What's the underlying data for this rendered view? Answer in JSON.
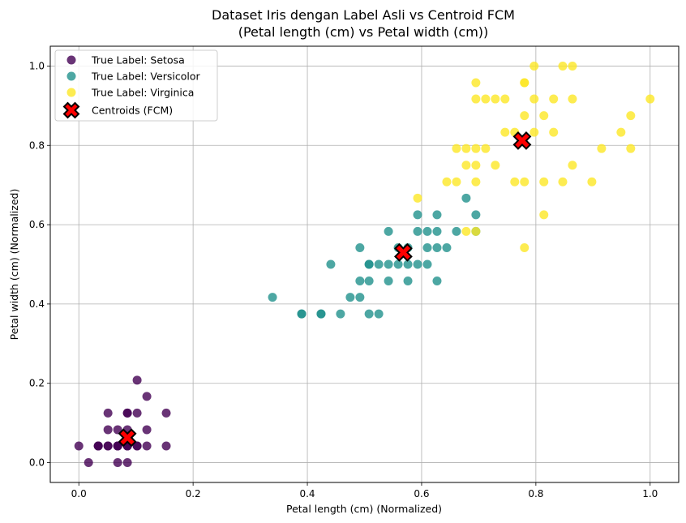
{
  "chart_data": {
    "type": "scatter",
    "title_line1": "Dataset Iris dengan Label Asli vs Centroid FCM",
    "title_line2": "(Petal length (cm) vs Petal width (cm))",
    "xlabel": "Petal length (cm) (Normalized)",
    "ylabel": "Petal width (cm) (Normalized)",
    "xlim": [
      -0.05,
      1.05
    ],
    "ylim": [
      -0.05,
      1.05
    ],
    "xticks": [
      0.0,
      0.2,
      0.4,
      0.6,
      0.8,
      1.0
    ],
    "yticks": [
      0.0,
      0.2,
      0.4,
      0.6,
      0.8,
      1.0
    ],
    "xtick_labels": [
      "0.0",
      "0.2",
      "0.4",
      "0.6",
      "0.8",
      "1.0"
    ],
    "ytick_labels": [
      "0.0",
      "0.2",
      "0.4",
      "0.6",
      "0.8",
      "1.0"
    ],
    "grid": true,
    "legend_position": "top-left",
    "series": [
      {
        "name": "True Label: Setosa",
        "color": "#440154",
        "marker": "circle",
        "points": [
          [
            0.0,
            0.042
          ],
          [
            0.017,
            0.0
          ],
          [
            0.034,
            0.042
          ],
          [
            0.034,
            0.042
          ],
          [
            0.051,
            0.042
          ],
          [
            0.051,
            0.083
          ],
          [
            0.051,
            0.125
          ],
          [
            0.068,
            0.0
          ],
          [
            0.068,
            0.042
          ],
          [
            0.068,
            0.083
          ],
          [
            0.068,
            0.042
          ],
          [
            0.085,
            0.0
          ],
          [
            0.085,
            0.042
          ],
          [
            0.085,
            0.083
          ],
          [
            0.085,
            0.125
          ],
          [
            0.102,
            0.042
          ],
          [
            0.102,
            0.125
          ],
          [
            0.102,
            0.208
          ],
          [
            0.119,
            0.042
          ],
          [
            0.119,
            0.083
          ],
          [
            0.119,
            0.167
          ],
          [
            0.153,
            0.042
          ],
          [
            0.153,
            0.125
          ],
          [
            0.068,
            0.042
          ],
          [
            0.085,
            0.042
          ],
          [
            0.034,
            0.042
          ],
          [
            0.051,
            0.042
          ],
          [
            0.085,
            0.042
          ],
          [
            0.085,
            0.125
          ],
          [
            0.102,
            0.042
          ]
        ]
      },
      {
        "name": "True Label: Versicolor",
        "color": "#21918c",
        "marker": "circle",
        "points": [
          [
            0.339,
            0.417
          ],
          [
            0.39,
            0.375
          ],
          [
            0.424,
            0.375
          ],
          [
            0.441,
            0.5
          ],
          [
            0.458,
            0.375
          ],
          [
            0.475,
            0.417
          ],
          [
            0.492,
            0.417
          ],
          [
            0.492,
            0.458
          ],
          [
            0.492,
            0.542
          ],
          [
            0.508,
            0.375
          ],
          [
            0.508,
            0.458
          ],
          [
            0.508,
            0.5
          ],
          [
            0.525,
            0.375
          ],
          [
            0.525,
            0.5
          ],
          [
            0.542,
            0.458
          ],
          [
            0.542,
            0.5
          ],
          [
            0.542,
            0.583
          ],
          [
            0.559,
            0.5
          ],
          [
            0.576,
            0.458
          ],
          [
            0.576,
            0.5
          ],
          [
            0.576,
            0.542
          ],
          [
            0.593,
            0.5
          ],
          [
            0.593,
            0.583
          ],
          [
            0.593,
            0.625
          ],
          [
            0.61,
            0.5
          ],
          [
            0.61,
            0.542
          ],
          [
            0.61,
            0.583
          ],
          [
            0.627,
            0.458
          ],
          [
            0.627,
            0.542
          ],
          [
            0.627,
            0.583
          ],
          [
            0.627,
            0.625
          ],
          [
            0.644,
            0.542
          ],
          [
            0.661,
            0.583
          ],
          [
            0.678,
            0.667
          ],
          [
            0.695,
            0.583
          ],
          [
            0.695,
            0.625
          ],
          [
            0.559,
            0.542
          ],
          [
            0.39,
            0.375
          ],
          [
            0.424,
            0.375
          ],
          [
            0.508,
            0.5
          ]
        ]
      },
      {
        "name": "True Label: Virginica",
        "color": "#fde725",
        "marker": "circle",
        "points": [
          [
            0.593,
            0.667
          ],
          [
            0.644,
            0.708
          ],
          [
            0.661,
            0.708
          ],
          [
            0.661,
            0.792
          ],
          [
            0.678,
            0.583
          ],
          [
            0.678,
            0.75
          ],
          [
            0.678,
            0.792
          ],
          [
            0.695,
            0.583
          ],
          [
            0.695,
            0.708
          ],
          [
            0.695,
            0.75
          ],
          [
            0.695,
            0.792
          ],
          [
            0.695,
            0.917
          ],
          [
            0.695,
            0.958
          ],
          [
            0.712,
            0.792
          ],
          [
            0.712,
            0.917
          ],
          [
            0.729,
            0.75
          ],
          [
            0.729,
            0.917
          ],
          [
            0.746,
            0.833
          ],
          [
            0.746,
            0.917
          ],
          [
            0.763,
            0.708
          ],
          [
            0.763,
            0.833
          ],
          [
            0.78,
            0.542
          ],
          [
            0.78,
            0.708
          ],
          [
            0.78,
            0.875
          ],
          [
            0.78,
            0.958
          ],
          [
            0.797,
            0.833
          ],
          [
            0.797,
            0.917
          ],
          [
            0.797,
            1.0
          ],
          [
            0.814,
            0.625
          ],
          [
            0.814,
            0.708
          ],
          [
            0.814,
            0.875
          ],
          [
            0.831,
            0.833
          ],
          [
            0.831,
            0.917
          ],
          [
            0.847,
            0.708
          ],
          [
            0.847,
            1.0
          ],
          [
            0.864,
            0.75
          ],
          [
            0.864,
            0.917
          ],
          [
            0.864,
            1.0
          ],
          [
            0.898,
            0.708
          ],
          [
            0.915,
            0.792
          ],
          [
            0.949,
            0.833
          ],
          [
            0.966,
            0.792
          ],
          [
            0.966,
            0.875
          ],
          [
            1.0,
            0.917
          ],
          [
            0.78,
            0.958
          ]
        ]
      }
    ],
    "centroids": {
      "name": "Centroids (FCM)",
      "color": "#ff0000",
      "edgecolor": "#000000",
      "marker": "X",
      "points": [
        [
          0.085,
          0.063
        ],
        [
          0.568,
          0.53
        ],
        [
          0.776,
          0.812
        ]
      ]
    }
  }
}
